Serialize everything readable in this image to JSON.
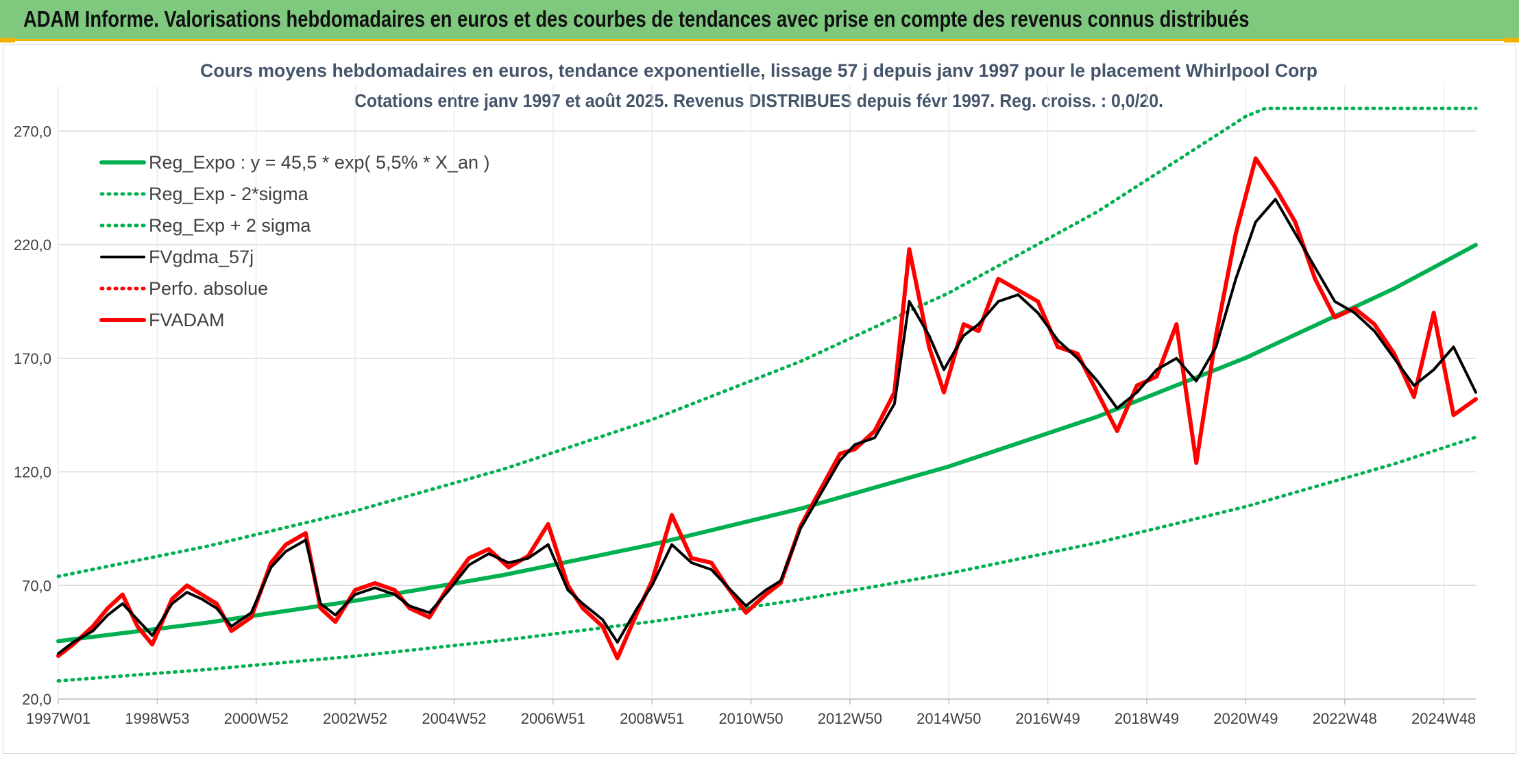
{
  "banner": {
    "title": "ADAM Informe. Valorisations hebdomadaires en euros et des courbes de tendances avec prise en compte des revenus connus distribués"
  },
  "colors": {
    "banner_bg": "#7fc97f",
    "banner_accent": "#f0b400",
    "trend": "#00b050",
    "smooth": "#000000",
    "price": "#ff0000",
    "subtitle": "#44546a"
  },
  "chart_data": {
    "type": "line",
    "title": "Cours moyens hebdomadaires en euros, tendance exponentielle, lissage 57 j depuis janv 1997 pour le placement Whirlpool Corp",
    "subtitle": "Cotations entre janv 1997 et août 2025. Revenus DISTRIBUES depuis févr 1997. Reg. croiss. : 0,0/20.",
    "xlabel": "",
    "ylabel": "",
    "x_range": [
      1997.0,
      2025.65
    ],
    "ylim": [
      20,
      290
    ],
    "y_ticks": [
      "20,0",
      "70,0",
      "120,0",
      "170,0",
      "220,0",
      "270,0"
    ],
    "y_tick_values": [
      20,
      70,
      120,
      170,
      220,
      270
    ],
    "x_tick_labels": [
      "1997W01",
      "1998W53",
      "2000W52",
      "2002W52",
      "2004W52",
      "2006W51",
      "2008W51",
      "2010W50",
      "2012W50",
      "2014W50",
      "2016W49",
      "2018W49",
      "2020W49",
      "2022W48",
      "2024W48"
    ],
    "x_tick_values": [
      1997.0,
      1999.0,
      2001.0,
      2003.0,
      2005.0,
      2007.0,
      2009.0,
      2011.0,
      2013.0,
      2015.0,
      2017.0,
      2019.0,
      2021.0,
      2023.0,
      2025.0
    ],
    "grid": true,
    "legend_position": "top-left",
    "series": [
      {
        "name": "Reg_Expo : y = 45,5 * exp( 5,5% *  X_an )",
        "style": "solid-thick",
        "color": "#00b050",
        "x": [
          1997.0,
          2000.0,
          2003.0,
          2006.0,
          2009.0,
          2012.0,
          2015.0,
          2018.0,
          2021.0,
          2024.0,
          2025.65
        ],
        "y": [
          45.5,
          53.6,
          63.3,
          74.6,
          88.0,
          103.8,
          122.4,
          144.3,
          170.2,
          200.7,
          219.9
        ]
      },
      {
        "name": "Reg_Exp - 2*sigma",
        "style": "dotted",
        "color": "#00b050",
        "x": [
          1997.0,
          2000.0,
          2003.0,
          2006.0,
          2009.0,
          2012.0,
          2015.0,
          2018.0,
          2021.0,
          2024.0,
          2025.65
        ],
        "y": [
          28.0,
          33.0,
          38.9,
          45.9,
          54.1,
          63.8,
          75.3,
          88.8,
          104.7,
          123.5,
          135.3
        ]
      },
      {
        "name": "Reg_Exp + 2 sigma",
        "style": "dotted",
        "color": "#00b050",
        "x": [
          1997.0,
          2000.0,
          2003.0,
          2006.0,
          2009.0,
          2012.0,
          2015.0,
          2018.0,
          2021.0,
          2021.4,
          2024.0,
          2025.65
        ],
        "y": [
          74.0,
          87.2,
          102.8,
          121.2,
          143.0,
          168.6,
          198.8,
          234.5,
          276.5,
          280.0,
          280.0,
          280.0
        ]
      },
      {
        "name": "FVgdma_57j",
        "style": "solid",
        "color": "#000000",
        "x": [
          1997.0,
          1997.3,
          1997.7,
          1998.0,
          1998.3,
          1998.6,
          1998.9,
          1999.3,
          1999.6,
          1999.9,
          2000.2,
          2000.5,
          2000.9,
          2001.3,
          2001.6,
          2002.0,
          2002.3,
          2002.6,
          2003.0,
          2003.4,
          2003.8,
          2004.1,
          2004.5,
          2004.9,
          2005.3,
          2005.7,
          2006.1,
          2006.5,
          2006.9,
          2007.3,
          2007.6,
          2008.0,
          2008.3,
          2008.7,
          2009.0,
          2009.4,
          2009.8,
          2010.2,
          2010.5,
          2010.9,
          2011.3,
          2011.6,
          2012.0,
          2012.4,
          2012.8,
          2013.1,
          2013.5,
          2013.9,
          2014.2,
          2014.6,
          2014.9,
          2015.3,
          2015.6,
          2016.0,
          2016.4,
          2016.8,
          2017.2,
          2017.6,
          2018.0,
          2018.4,
          2018.8,
          2019.2,
          2019.6,
          2020.0,
          2020.4,
          2020.8,
          2021.2,
          2021.6,
          2022.0,
          2022.4,
          2022.8,
          2023.2,
          2023.6,
          2024.0,
          2024.4,
          2024.8,
          2025.2,
          2025.65
        ],
        "y": [
          40,
          45,
          50,
          57,
          62,
          55,
          48,
          62,
          67,
          64,
          60,
          52,
          58,
          78,
          85,
          90,
          62,
          57,
          66,
          69,
          66,
          61,
          58,
          68,
          79,
          84,
          80,
          82,
          88,
          68,
          62,
          55,
          45,
          60,
          70,
          88,
          80,
          77,
          70,
          61,
          68,
          72,
          95,
          110,
          125,
          132,
          135,
          150,
          195,
          180,
          165,
          180,
          185,
          195,
          198,
          190,
          178,
          170,
          160,
          148,
          155,
          165,
          170,
          160,
          175,
          205,
          230,
          240,
          225,
          210,
          195,
          190,
          182,
          170,
          158,
          165,
          175,
          155
        ]
      },
      {
        "name": "Perfo. absolue",
        "style": "dotted",
        "color": "#ff0000",
        "x": [
          1997.0,
          1997.3,
          1997.7,
          1998.0,
          1998.3,
          1998.6,
          1998.9,
          1999.3,
          1999.6,
          1999.9,
          2000.2,
          2000.5,
          2000.9,
          2001.3,
          2001.6,
          2002.0,
          2002.3,
          2002.6,
          2003.0,
          2003.4,
          2003.8,
          2004.1,
          2004.5,
          2004.9,
          2005.3,
          2005.7,
          2006.1,
          2006.5,
          2006.9,
          2007.3,
          2007.6,
          2008.0,
          2008.3,
          2008.7,
          2009.0,
          2009.4,
          2009.8,
          2010.2,
          2010.5,
          2010.9,
          2011.3,
          2011.6,
          2012.0,
          2012.4,
          2012.8,
          2013.1,
          2013.5,
          2013.9,
          2014.2,
          2014.6,
          2014.9,
          2015.3,
          2015.6,
          2016.0,
          2016.4,
          2016.8,
          2017.2,
          2017.6,
          2018.0,
          2018.4,
          2018.8,
          2019.2,
          2019.6,
          2020.0,
          2020.4,
          2020.8,
          2021.2,
          2021.6,
          2022.0,
          2022.4,
          2022.8,
          2023.2,
          2023.6,
          2024.0,
          2024.4,
          2024.8,
          2025.2,
          2025.65
        ],
        "y": [
          39,
          44,
          52,
          60,
          66,
          52,
          44,
          64,
          70,
          66,
          62,
          50,
          56,
          80,
          88,
          93,
          60,
          54,
          68,
          71,
          68,
          60,
          56,
          70,
          82,
          86,
          78,
          83,
          97,
          70,
          60,
          52,
          38,
          58,
          72,
          101,
          82,
          80,
          70,
          58,
          66,
          71,
          96,
          112,
          128,
          130,
          138,
          155,
          218,
          175,
          155,
          185,
          182,
          205,
          200,
          195,
          175,
          172,
          155,
          138,
          158,
          162,
          185,
          124,
          180,
          225,
          258,
          245,
          230,
          205,
          188,
          192,
          185,
          172,
          153,
          190,
          145,
          152
        ]
      },
      {
        "name": "FVADAM",
        "style": "solid-thick",
        "color": "#ff0000",
        "x": [
          1997.0,
          1997.3,
          1997.7,
          1998.0,
          1998.3,
          1998.6,
          1998.9,
          1999.3,
          1999.6,
          1999.9,
          2000.2,
          2000.5,
          2000.9,
          2001.3,
          2001.6,
          2002.0,
          2002.3,
          2002.6,
          2003.0,
          2003.4,
          2003.8,
          2004.1,
          2004.5,
          2004.9,
          2005.3,
          2005.7,
          2006.1,
          2006.5,
          2006.9,
          2007.3,
          2007.6,
          2008.0,
          2008.3,
          2008.7,
          2009.0,
          2009.4,
          2009.8,
          2010.2,
          2010.5,
          2010.9,
          2011.3,
          2011.6,
          2012.0,
          2012.4,
          2012.8,
          2013.1,
          2013.5,
          2013.9,
          2014.2,
          2014.6,
          2014.9,
          2015.3,
          2015.6,
          2016.0,
          2016.4,
          2016.8,
          2017.2,
          2017.6,
          2018.0,
          2018.4,
          2018.8,
          2019.2,
          2019.6,
          2020.0,
          2020.4,
          2020.8,
          2021.2,
          2021.6,
          2022.0,
          2022.4,
          2022.8,
          2023.2,
          2023.6,
          2024.0,
          2024.4,
          2024.8,
          2025.2,
          2025.65
        ],
        "y": [
          39,
          44,
          52,
          60,
          66,
          52,
          44,
          64,
          70,
          66,
          62,
          50,
          56,
          80,
          88,
          93,
          60,
          54,
          68,
          71,
          68,
          60,
          56,
          70,
          82,
          86,
          78,
          83,
          97,
          70,
          60,
          52,
          38,
          58,
          72,
          101,
          82,
          80,
          70,
          58,
          66,
          71,
          96,
          112,
          128,
          130,
          138,
          155,
          218,
          175,
          155,
          185,
          182,
          205,
          200,
          195,
          175,
          172,
          155,
          138,
          158,
          162,
          185,
          124,
          180,
          225,
          258,
          245,
          230,
          205,
          188,
          192,
          185,
          172,
          153,
          190,
          145,
          152
        ]
      }
    ]
  }
}
